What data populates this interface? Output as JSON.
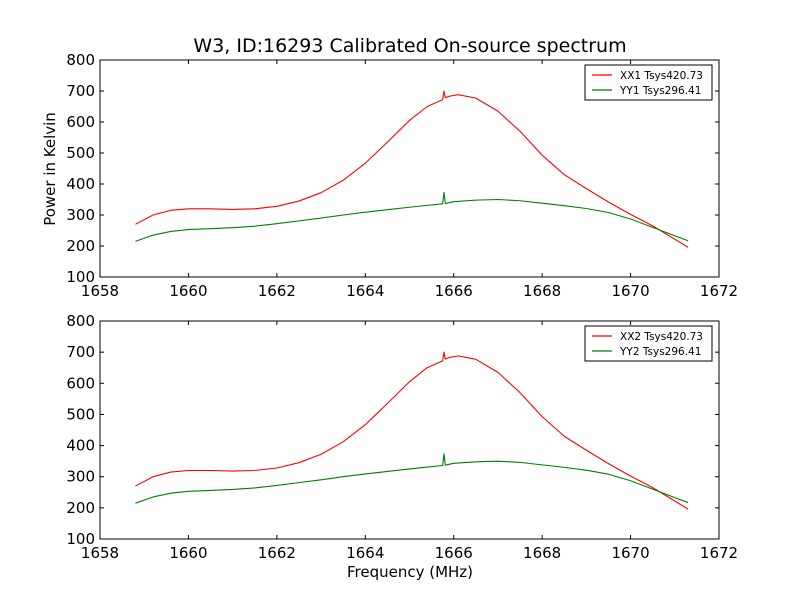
{
  "chart_data": {
    "type": "line",
    "title": "W3, ID:16293 Calibrated On-source spectrum",
    "xlabel": "Frequency (MHz)",
    "ylabel": "Power in Kelvin",
    "colors": {
      "xx": "#ff0000",
      "yy": "#007f00"
    },
    "subplots": [
      {
        "xlim": [
          1658,
          1672
        ],
        "ylim": [
          100,
          800
        ],
        "xticks": [
          1658,
          1660,
          1662,
          1664,
          1666,
          1668,
          1670,
          1672
        ],
        "yticks": [
          100,
          200,
          300,
          400,
          500,
          600,
          700,
          800
        ],
        "legend_position": "top-right",
        "series": [
          {
            "name": "XX1 Tsys420.73",
            "color": "#ff0000",
            "x": [
              1658.8,
              1659.2,
              1659.6,
              1660.0,
              1660.5,
              1661.0,
              1661.5,
              1662.0,
              1662.5,
              1663.0,
              1663.5,
              1664.0,
              1664.5,
              1665.0,
              1665.4,
              1665.75,
              1665.78,
              1665.81,
              1665.9,
              1666.1,
              1666.5,
              1667.0,
              1667.5,
              1668.0,
              1668.5,
              1669.0,
              1669.5,
              1670.0,
              1670.5,
              1671.0,
              1671.3
            ],
            "y": [
              270,
              300,
              315,
              320,
              320,
              318,
              320,
              328,
              345,
              372,
              412,
              467,
              535,
              605,
              650,
              672,
              700,
              678,
              683,
              688,
              677,
              635,
              570,
              493,
              430,
              385,
              342,
              302,
              265,
              222,
              196
            ]
          },
          {
            "name": "YY1 Tsys296.41",
            "color": "#007f00",
            "x": [
              1658.8,
              1659.2,
              1659.6,
              1660.0,
              1660.5,
              1661.0,
              1661.5,
              1662.0,
              1662.5,
              1663.0,
              1663.5,
              1664.0,
              1664.5,
              1665.0,
              1665.4,
              1665.75,
              1665.78,
              1665.81,
              1666.0,
              1666.5,
              1667.0,
              1667.5,
              1668.0,
              1668.5,
              1669.0,
              1669.5,
              1670.0,
              1670.5,
              1671.0,
              1671.3
            ],
            "y": [
              215,
              235,
              247,
              253,
              256,
              259,
              264,
              272,
              281,
              290,
              300,
              309,
              317,
              325,
              331,
              336,
              373,
              337,
              343,
              348,
              350,
              346,
              338,
              330,
              321,
              308,
              287,
              260,
              233,
              217
            ]
          }
        ]
      },
      {
        "xlim": [
          1658,
          1672
        ],
        "ylim": [
          100,
          800
        ],
        "xticks": [
          1658,
          1660,
          1662,
          1664,
          1666,
          1668,
          1670,
          1672
        ],
        "yticks": [
          100,
          200,
          300,
          400,
          500,
          600,
          700,
          800
        ],
        "legend_position": "top-right",
        "series": [
          {
            "name": "XX2 Tsys420.73",
            "color": "#ff0000",
            "x": [
              1658.8,
              1659.2,
              1659.6,
              1660.0,
              1660.5,
              1661.0,
              1661.5,
              1662.0,
              1662.5,
              1663.0,
              1663.5,
              1664.0,
              1664.5,
              1665.0,
              1665.4,
              1665.75,
              1665.78,
              1665.81,
              1665.9,
              1666.1,
              1666.5,
              1667.0,
              1667.5,
              1668.0,
              1668.5,
              1669.0,
              1669.5,
              1670.0,
              1670.5,
              1671.0,
              1671.3
            ],
            "y": [
              270,
              300,
              315,
              320,
              320,
              318,
              320,
              328,
              345,
              372,
              412,
              467,
              535,
              605,
              650,
              672,
              700,
              678,
              683,
              688,
              677,
              635,
              570,
              493,
              430,
              385,
              342,
              302,
              265,
              222,
              196
            ]
          },
          {
            "name": "YY2 Tsys296.41",
            "color": "#007f00",
            "x": [
              1658.8,
              1659.2,
              1659.6,
              1660.0,
              1660.5,
              1661.0,
              1661.5,
              1662.0,
              1662.5,
              1663.0,
              1663.5,
              1664.0,
              1664.5,
              1665.0,
              1665.4,
              1665.75,
              1665.78,
              1665.81,
              1666.0,
              1666.5,
              1667.0,
              1667.5,
              1668.0,
              1668.5,
              1669.0,
              1669.5,
              1670.0,
              1670.5,
              1671.0,
              1671.3
            ],
            "y": [
              215,
              235,
              247,
              253,
              256,
              259,
              264,
              272,
              281,
              290,
              300,
              309,
              317,
              325,
              331,
              336,
              373,
              337,
              343,
              348,
              350,
              346,
              338,
              330,
              321,
              308,
              287,
              260,
              233,
              217
            ]
          }
        ]
      }
    ]
  }
}
